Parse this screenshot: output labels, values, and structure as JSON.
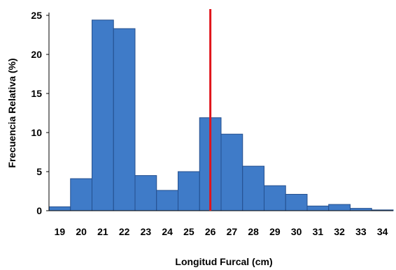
{
  "chart_data": {
    "type": "bar",
    "categories": [
      "19",
      "20",
      "21",
      "22",
      "23",
      "24",
      "25",
      "26",
      "27",
      "28",
      "29",
      "30",
      "31",
      "32",
      "33",
      "34"
    ],
    "values": [
      0.5,
      4.1,
      24.4,
      23.3,
      4.5,
      2.6,
      5.0,
      11.9,
      9.8,
      5.7,
      3.2,
      2.1,
      0.6,
      0.8,
      0.3,
      0.1
    ],
    "title": "",
    "xlabel": "Longitud Furcal (cm)",
    "ylabel": "Frecuencia Relativa (%)",
    "ylim": [
      0,
      25
    ],
    "yticks": [
      0,
      5,
      10,
      15,
      20,
      25
    ],
    "grid": false,
    "reference_line": {
      "x": 26,
      "color": "#e0141b"
    },
    "colors": {
      "bar": "#3f7bc8",
      "bar_edge": "#244f8e",
      "axis": "#000000"
    }
  }
}
